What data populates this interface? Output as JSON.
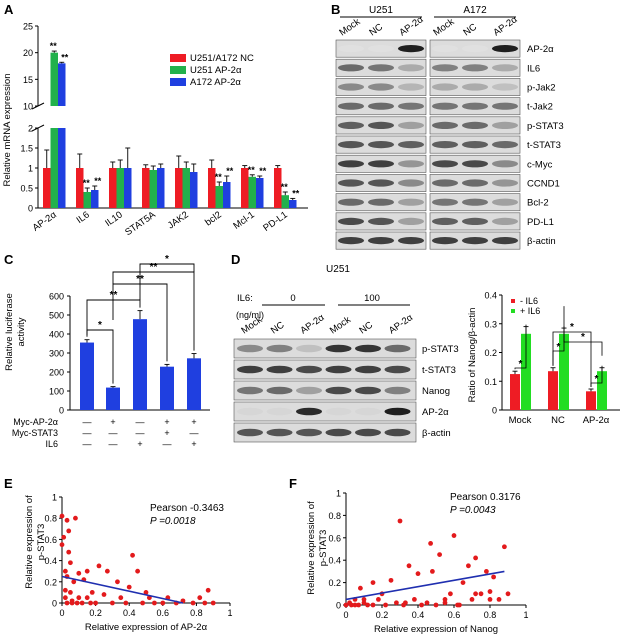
{
  "panels": {
    "A": {
      "label": "A",
      "chart_data": {
        "type": "bar",
        "ylabel": "Relative mRNA  expression",
        "ylim_lower": [
          0,
          2
        ],
        "ylim_upper": [
          10,
          25
        ],
        "yticks_lower": [
          "0",
          "0.5",
          "1",
          "1.5",
          "2"
        ],
        "yticks_upper": [
          "10",
          "15",
          "20",
          "25"
        ],
        "categories": [
          "AP-2α",
          "IL6",
          "IL10",
          "STAT5A",
          "JAK2",
          "bcl2",
          "Mcl-1",
          "PD-L1"
        ],
        "series": [
          {
            "name": "U251/A172 NC",
            "color": "#ee1c24",
            "values": [
              1.0,
              1.0,
              1.0,
              1.0,
              1.0,
              1.0,
              1.0,
              1.0
            ],
            "errors": [
              0.45,
              0.35,
              0.15,
              0.08,
              0.3,
              0.2,
              0.06,
              0.06
            ]
          },
          {
            "name": "U251 AP-2α",
            "color": "#22b14c",
            "values": [
              20.0,
              0.4,
              1.0,
              0.95,
              1.0,
              0.55,
              0.78,
              0.32
            ],
            "errors": [
              0.3,
              0.1,
              0.2,
              0.1,
              0.15,
              0.1,
              0.05,
              0.08
            ]
          },
          {
            "name": "A172 AP-2α",
            "color": "#1f3fe0",
            "values": [
              18.0,
              0.45,
              1.0,
              1.0,
              0.9,
              0.65,
              0.75,
              0.2
            ],
            "errors": [
              0.2,
              0.1,
              0.5,
              0.1,
              0.2,
              0.15,
              0.05,
              0.04
            ]
          }
        ],
        "sig_groups": [
          [
            "**",
            "**"
          ],
          [
            "**",
            "**"
          ],
          [
            "",
            ""
          ],
          [
            "",
            ""
          ],
          [
            "",
            ""
          ],
          [
            "**",
            "**"
          ],
          [
            "**",
            "**"
          ],
          [
            "**",
            "**"
          ]
        ]
      }
    },
    "B": {
      "label": "B",
      "col_groups": [
        "U251",
        "A172"
      ],
      "lanes": [
        "Mock",
        "NC",
        "AP-2α"
      ],
      "proteins": [
        "AP-2α",
        "IL6",
        "p-Jak2",
        "t-Jak2",
        "p-STAT3",
        "t-STAT3",
        "c-Myc",
        "CCND1",
        "Bcl-2",
        "PD-L1",
        "β-actin"
      ],
      "intensity": [
        [
          [
            0.05,
            0.05,
            0.95
          ],
          [
            0.05,
            0.05,
            0.95
          ]
        ],
        [
          [
            0.6,
            0.55,
            0.3
          ],
          [
            0.5,
            0.5,
            0.3
          ]
        ],
        [
          [
            0.45,
            0.45,
            0.25
          ],
          [
            0.3,
            0.3,
            0.2
          ]
        ],
        [
          [
            0.6,
            0.6,
            0.55
          ],
          [
            0.55,
            0.55,
            0.55
          ]
        ],
        [
          [
            0.65,
            0.7,
            0.35
          ],
          [
            0.6,
            0.6,
            0.35
          ]
        ],
        [
          [
            0.7,
            0.7,
            0.65
          ],
          [
            0.65,
            0.65,
            0.6
          ]
        ],
        [
          [
            0.8,
            0.8,
            0.4
          ],
          [
            0.75,
            0.75,
            0.45
          ]
        ],
        [
          [
            0.7,
            0.7,
            0.45
          ],
          [
            0.6,
            0.6,
            0.4
          ]
        ],
        [
          [
            0.6,
            0.6,
            0.35
          ],
          [
            0.55,
            0.55,
            0.35
          ]
        ],
        [
          [
            0.75,
            0.7,
            0.35
          ],
          [
            0.65,
            0.65,
            0.35
          ]
        ],
        [
          [
            0.8,
            0.8,
            0.8
          ],
          [
            0.8,
            0.8,
            0.8
          ]
        ]
      ]
    },
    "C": {
      "label": "C",
      "chart_data": {
        "type": "bar",
        "ylabel_lines": [
          "Relative luciferase",
          "activity"
        ],
        "ylim": [
          0,
          600
        ],
        "yticks": [
          "0",
          "100",
          "200",
          "300",
          "400",
          "500",
          "600"
        ],
        "values": [
          355,
          118,
          478,
          228,
          272
        ],
        "errors": [
          15,
          5,
          45,
          12,
          25
        ],
        "color": "#1f3fe0",
        "row_labels": [
          "Myc-AP-2α",
          "Myc-STAT3",
          "IL6"
        ],
        "row_marks": [
          [
            "—",
            "+",
            "—",
            "+",
            "+"
          ],
          [
            "—",
            "—",
            "—",
            "+",
            "—"
          ],
          [
            "—",
            "—",
            "+",
            "—",
            "+"
          ]
        ],
        "brackets": [
          "*",
          "**",
          "**",
          "**",
          "*"
        ]
      }
    },
    "D": {
      "label": "D",
      "cell_line": "U251",
      "il6_label": "IL6:",
      "il6_unit": "(ng/ml)",
      "il6_doses": [
        "0",
        "100"
      ],
      "lanes": [
        "Mock",
        "NC",
        "AP-2α",
        "Mock",
        "NC",
        "AP-2α"
      ],
      "proteins": [
        "p-STAT3",
        "t-STAT3",
        "Nanog",
        "AP-2α",
        "β-actin"
      ],
      "intensity": [
        [
          0.45,
          0.5,
          0.2,
          0.85,
          0.85,
          0.6
        ],
        [
          0.8,
          0.8,
          0.75,
          0.8,
          0.8,
          0.75
        ],
        [
          0.55,
          0.6,
          0.35,
          0.75,
          0.75,
          0.5
        ],
        [
          0.1,
          0.1,
          0.9,
          0.1,
          0.1,
          0.95
        ],
        [
          0.7,
          0.7,
          0.7,
          0.75,
          0.75,
          0.75
        ]
      ],
      "chart_data": {
        "type": "bar",
        "ylabel": "Ratio of Nanog/β-actin",
        "ylim": [
          0,
          0.4
        ],
        "yticks": [
          "0",
          "0.1",
          "0.2",
          "0.3",
          "0.4"
        ],
        "categories": [
          "Mock",
          "NC",
          "AP-2α"
        ],
        "series": [
          {
            "name": "- IL6",
            "color": "#ee1c24",
            "values": [
              0.125,
              0.135,
              0.065
            ],
            "errors": [
              0.01,
              0.012,
              0.008
            ]
          },
          {
            "name": "+ IL6",
            "color": "#22dd22",
            "values": [
              0.265,
              0.265,
              0.135
            ],
            "errors": [
              0.025,
              0.02,
              0.012
            ]
          }
        ],
        "sig": [
          "*",
          "*",
          "*",
          "*",
          "*"
        ]
      }
    },
    "E": {
      "label": "E",
      "chart_data": {
        "type": "scatter",
        "xlabel": "Relative expression of AP-2α",
        "ylabel_lines": [
          "Relative expression of",
          "p-STAT3"
        ],
        "xlim": [
          0,
          1
        ],
        "ylim": [
          0,
          1
        ],
        "xticks": [
          "0",
          "0.2",
          "0.4",
          "0.6",
          "0.8",
          "1"
        ],
        "yticks": [
          "0",
          "0.2",
          "0.4",
          "0.6",
          "0.8",
          "1"
        ],
        "pearson": "Pearson -0.3463",
        "p_value": "P =0.0018",
        "fit_line": {
          "x": [
            0,
            0.72
          ],
          "y": [
            0.25,
            0
          ]
        },
        "x": [
          0.0,
          0.0,
          0.01,
          0.02,
          0.02,
          0.03,
          0.03,
          0.04,
          0.05,
          0.05,
          0.06,
          0.07,
          0.08,
          0.1,
          0.1,
          0.12,
          0.13,
          0.15,
          0.17,
          0.18,
          0.2,
          0.22,
          0.25,
          0.27,
          0.3,
          0.33,
          0.35,
          0.38,
          0.4,
          0.42,
          0.45,
          0.48,
          0.5,
          0.52,
          0.55,
          0.6,
          0.63,
          0.68,
          0.72,
          0.78,
          0.82,
          0.85,
          0.87,
          0.9,
          0.02,
          0.04,
          0.06,
          0.09,
          0.15,
          0.03
        ],
        "y": [
          0.82,
          0.55,
          0.62,
          0.3,
          0.05,
          0.0,
          0.78,
          0.48,
          0.1,
          0.38,
          0.02,
          0.2,
          0.8,
          0.28,
          0.05,
          0.0,
          0.22,
          0.3,
          0.0,
          0.1,
          0.0,
          0.35,
          0.08,
          0.3,
          0.0,
          0.2,
          0.05,
          0.0,
          0.15,
          0.45,
          0.3,
          0.0,
          0.1,
          0.05,
          0.0,
          0.0,
          0.05,
          0.0,
          0.02,
          0.0,
          0.05,
          0.0,
          0.12,
          0.0,
          0.12,
          0.68,
          0.0,
          0.0,
          0.05,
          0.25
        ]
      }
    },
    "F": {
      "label": "F",
      "chart_data": {
        "type": "scatter",
        "xlabel": "Relative expression of Nanog",
        "ylabel_lines": [
          "Relative expression of",
          "p-STAT3"
        ],
        "xlim": [
          0,
          1
        ],
        "ylim": [
          0,
          1
        ],
        "xticks": [
          "0",
          "0.2",
          "0.4",
          "0.6",
          "0.8",
          "1"
        ],
        "yticks": [
          "0",
          "0.2",
          "0.4",
          "0.6",
          "0.8",
          "1"
        ],
        "pearson": "Pearson 0.3176",
        "p_value": "P =0.0043",
        "fit_line": {
          "x": [
            0,
            0.88
          ],
          "y": [
            0.05,
            0.3
          ]
        },
        "x": [
          0.0,
          0.02,
          0.03,
          0.05,
          0.07,
          0.08,
          0.1,
          0.12,
          0.15,
          0.18,
          0.2,
          0.22,
          0.25,
          0.28,
          0.3,
          0.32,
          0.35,
          0.38,
          0.4,
          0.42,
          0.45,
          0.48,
          0.5,
          0.52,
          0.55,
          0.58,
          0.6,
          0.62,
          0.65,
          0.68,
          0.7,
          0.72,
          0.75,
          0.78,
          0.8,
          0.82,
          0.85,
          0.88,
          0.9,
          0.05,
          0.1,
          0.15,
          0.33,
          0.47,
          0.63,
          0.72,
          0.8,
          0.55
        ],
        "y": [
          0.0,
          0.02,
          0.0,
          0.05,
          0.0,
          0.15,
          0.02,
          0.0,
          0.2,
          0.05,
          0.1,
          0.0,
          0.22,
          0.02,
          0.75,
          0.0,
          0.35,
          0.05,
          0.28,
          0.0,
          0.02,
          0.3,
          0.0,
          0.45,
          0.05,
          0.1,
          0.62,
          0.0,
          0.2,
          0.35,
          0.05,
          0.42,
          0.1,
          0.3,
          0.05,
          0.25,
          0.05,
          0.52,
          0.1,
          0.0,
          0.05,
          0.0,
          0.02,
          0.55,
          0.0,
          0.1,
          0.12,
          0.02
        ]
      }
    }
  }
}
